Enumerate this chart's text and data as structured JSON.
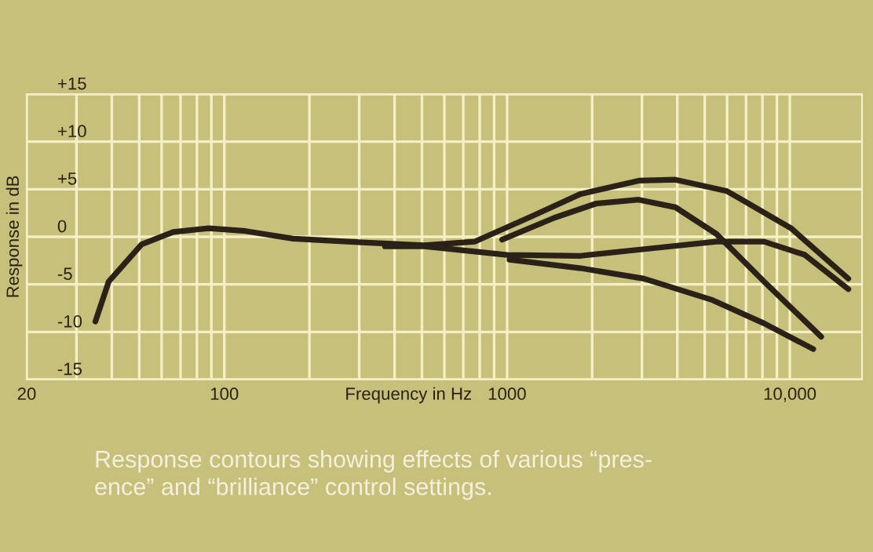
{
  "chart_data": {
    "type": "line",
    "xlabel": "Frequency in Hz",
    "ylabel": "Response in dB",
    "log": "x",
    "xlim": [
      20,
      18000
    ],
    "ylim": [
      -15,
      15
    ],
    "xticks": [
      {
        "value": 20,
        "label": "20"
      },
      {
        "value": 30,
        "label": null
      },
      {
        "value": 40,
        "label": null
      },
      {
        "value": 50,
        "label": null
      },
      {
        "value": 60,
        "label": null
      },
      {
        "value": 70,
        "label": null
      },
      {
        "value": 80,
        "label": null
      },
      {
        "value": 90,
        "label": null
      },
      {
        "value": 100,
        "label": "100"
      },
      {
        "value": 200,
        "label": null
      },
      {
        "value": 300,
        "label": null
      },
      {
        "value": 400,
        "label": null
      },
      {
        "value": 500,
        "label": null
      },
      {
        "value": 600,
        "label": null
      },
      {
        "value": 700,
        "label": null
      },
      {
        "value": 800,
        "label": null
      },
      {
        "value": 900,
        "label": null
      },
      {
        "value": 1000,
        "label": "1000"
      },
      {
        "value": 2000,
        "label": null
      },
      {
        "value": 3000,
        "label": null
      },
      {
        "value": 4000,
        "label": null
      },
      {
        "value": 5000,
        "label": null
      },
      {
        "value": 6000,
        "label": null
      },
      {
        "value": 7000,
        "label": null
      },
      {
        "value": 8000,
        "label": null
      },
      {
        "value": 9000,
        "label": null
      },
      {
        "value": 10000,
        "label": "10,000"
      }
    ],
    "yticks": [
      {
        "value": -15,
        "label": "-15"
      },
      {
        "value": -10,
        "label": "-10"
      },
      {
        "value": -5,
        "label": "-5"
      },
      0,
      {
        "value": 5,
        "label": "+5"
      },
      {
        "value": 10,
        "label": "+10"
      },
      {
        "value": 15,
        "label": "+15"
      }
    ],
    "grid": true,
    "line_style": "solid",
    "marker": "none",
    "series": [
      {
        "color": "#2a2118",
        "x": [
          35,
          39,
          51,
          66,
          88,
          119,
          175,
          316,
          510,
          770,
          1190,
          1820,
          2920,
          3940,
          6000,
          10100,
          16100
        ],
        "values": [
          -8.9,
          -4.7,
          -0.8,
          0.5,
          0.9,
          0.6,
          -0.2,
          -0.6,
          -0.9,
          -0.5,
          2.0,
          4.5,
          5.9,
          6.0,
          4.8,
          0.9,
          -4.4
        ]
      },
      {
        "color": "#2a2118",
        "x": [
          960,
          1470,
          2070,
          2920,
          3940,
          5500,
          8100,
          12900
        ],
        "values": [
          -0.3,
          2.0,
          3.5,
          3.9,
          3.1,
          0.3,
          -4.7,
          -10.5
        ]
      },
      {
        "color": "#2a2118",
        "x": [
          370,
          510,
          1000,
          1820,
          3050,
          5500,
          8100,
          11300,
          16100
        ],
        "values": [
          -1.0,
          -1.0,
          -1.9,
          -2.0,
          -1.3,
          -0.5,
          -0.5,
          -1.9,
          -5.5
        ]
      },
      {
        "color": "#2a2118",
        "x": [
          1020,
          1820,
          3050,
          5270,
          8100,
          12100
        ],
        "values": [
          -2.4,
          -3.3,
          -4.4,
          -6.6,
          -9.1,
          -11.8
        ]
      }
    ],
    "annotations": [
      "Response contours showing effects of various “pres-\nence” and “brilliance” control settings."
    ]
  }
}
